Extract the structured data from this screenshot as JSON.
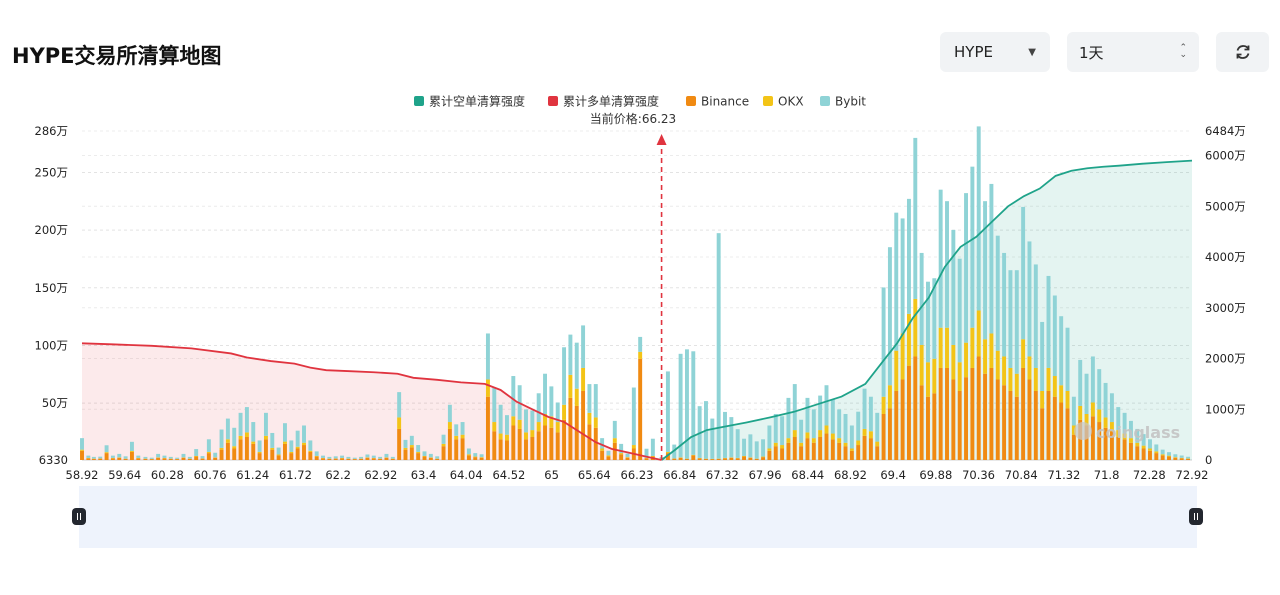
{
  "header": {
    "title": "HYPE交易所清算地图",
    "symbol_select": "HYPE",
    "period_select": "1天"
  },
  "chart_data": {
    "type": "bar",
    "legend": [
      {
        "name": "累计空单清算强度",
        "color": "#1fa38a"
      },
      {
        "name": "累计多单清算强度",
        "color": "#e0343f"
      },
      {
        "name": "Binance",
        "color": "#f08a12"
      },
      {
        "name": "OKX",
        "color": "#f3c417"
      },
      {
        "name": "Bybit",
        "color": "#8fd3d6"
      }
    ],
    "current_price_label": "当前价格:66.23",
    "current_price": 66.23,
    "watermark": "coinglass",
    "x_ticks": [
      "58.92",
      "59.64",
      "60.28",
      "60.76",
      "61.24",
      "61.72",
      "62.2",
      "62.92",
      "63.4",
      "64.04",
      "64.52",
      "65",
      "65.64",
      "66.23",
      "66.84",
      "67.32",
      "67.96",
      "68.44",
      "68.92",
      "69.4",
      "69.88",
      "70.36",
      "70.84",
      "71.32",
      "71.8",
      "72.28",
      "72.92"
    ],
    "left_axis_ticks": [
      "6330",
      "50万",
      "100万",
      "150万",
      "200万",
      "250万",
      "286万"
    ],
    "left_axis_values": [
      6330,
      500000,
      1000000,
      1500000,
      2000000,
      2500000,
      2860000
    ],
    "right_axis_ticks": [
      "0",
      "1000万",
      "2000万",
      "3000万",
      "4000万",
      "5000万",
      "6000万",
      "6484万"
    ],
    "right_axis_values": [
      0,
      10000000,
      20000000,
      30000000,
      40000000,
      50000000,
      60000000,
      64840000
    ],
    "x_range": [
      58.92,
      72.92
    ],
    "ylim_left": [
      6330,
      2860000
    ],
    "ylim_right": [
      0,
      64840000
    ],
    "bars_x": [
      58.92,
      59.0,
      59.07,
      59.15,
      59.23,
      59.31,
      59.39,
      59.47,
      59.55,
      59.63,
      59.72,
      59.8,
      59.88,
      59.96,
      60.04,
      60.12,
      60.2,
      60.28,
      60.36,
      60.44,
      60.52,
      60.6,
      60.68,
      60.76,
      60.84,
      60.92,
      61.0,
      61.08,
      61.16,
      61.24,
      61.32,
      61.4,
      61.48,
      61.56,
      61.64,
      61.72,
      61.8,
      61.88,
      61.96,
      62.04,
      62.12,
      62.2,
      62.28,
      62.36,
      62.44,
      62.52,
      62.6,
      62.68,
      62.76,
      62.84,
      62.92,
      63.0,
      63.08,
      63.16,
      63.24,
      63.32,
      63.4,
      63.48,
      63.56,
      63.64,
      63.72,
      63.8,
      63.88,
      63.96,
      64.04,
      64.12,
      64.2,
      64.28,
      64.36,
      64.44,
      64.52,
      64.6,
      64.68,
      64.76,
      64.84,
      64.92,
      65.0,
      65.08,
      65.16,
      65.24,
      65.32,
      65.4,
      65.48,
      65.56,
      65.64,
      65.72,
      65.8,
      65.88,
      65.96,
      66.04,
      66.12,
      66.23,
      66.31,
      66.39,
      66.47,
      66.55,
      66.63,
      66.71,
      66.79,
      66.87,
      66.95,
      67.03,
      67.11,
      67.19,
      67.27,
      67.35,
      67.43,
      67.51,
      67.59,
      67.67,
      67.75,
      67.83,
      67.91,
      67.99,
      68.07,
      68.15,
      68.23,
      68.31,
      68.39,
      68.47,
      68.55,
      68.63,
      68.71,
      68.79,
      68.87,
      68.95,
      69.03,
      69.11,
      69.19,
      69.27,
      69.35,
      69.43,
      69.51,
      69.59,
      69.67,
      69.75,
      69.83,
      69.91,
      69.99,
      70.07,
      70.15,
      70.23,
      70.31,
      70.39,
      70.47,
      70.55,
      70.63,
      70.71,
      70.79,
      70.87,
      70.95,
      71.03,
      71.11,
      71.19,
      71.27,
      71.35,
      71.43,
      71.51,
      71.59,
      71.67,
      71.75,
      71.83,
      71.91,
      71.99,
      72.07,
      72.15,
      72.23,
      72.31,
      72.39,
      72.47,
      72.55,
      72.63,
      72.71,
      72.79,
      72.87
    ],
    "series": [
      {
        "name": "Binance",
        "values": [
          80000,
          15000,
          10000,
          12000,
          60000,
          15000,
          20000,
          10000,
          70000,
          15000,
          10000,
          8000,
          20000,
          15000,
          10000,
          8000,
          20000,
          10000,
          30000,
          12000,
          60000,
          20000,
          90000,
          150000,
          100000,
          180000,
          200000,
          140000,
          60000,
          180000,
          90000,
          40000,
          140000,
          60000,
          100000,
          130000,
          70000,
          30000,
          15000,
          10000,
          12000,
          15000,
          10000,
          8000,
          10000,
          20000,
          15000,
          10000,
          20000,
          10000,
          270000,
          90000,
          110000,
          60000,
          30000,
          20000,
          10000,
          120000,
          270000,
          180000,
          190000,
          40000,
          25000,
          20000,
          550000,
          250000,
          180000,
          170000,
          300000,
          270000,
          180000,
          200000,
          250000,
          300000,
          280000,
          240000,
          350000,
          540000,
          470000,
          600000,
          310000,
          280000,
          80000,
          30000,
          150000,
          50000,
          20000,
          100000,
          880000,
          15000,
          30000,
          8000,
          60000,
          12000,
          20000,
          10000,
          40000,
          15000,
          10000,
          8000,
          10000,
          15000,
          20000,
          15000,
          30000,
          20000,
          10000,
          25000,
          80000,
          120000,
          100000,
          150000,
          200000,
          120000,
          190000,
          150000,
          200000,
          230000,
          180000,
          150000,
          120000,
          80000,
          130000,
          210000,
          190000,
          120000,
          400000,
          450000,
          600000,
          700000,
          820000,
          900000,
          650000,
          550000,
          580000,
          800000,
          800000,
          700000,
          600000,
          720000,
          800000,
          900000,
          750000,
          800000,
          700000,
          650000,
          600000,
          550000,
          800000,
          700000,
          600000,
          450000,
          600000,
          550000,
          500000,
          450000,
          220000,
          350000,
          300000,
          380000,
          330000,
          280000,
          250000,
          200000,
          180000,
          150000,
          120000,
          100000,
          80000,
          60000,
          40000,
          30000,
          20000,
          15000,
          10000,
          10000
        ]
      },
      {
        "name": "OKX",
        "values": [
          10000,
          3000,
          2000,
          2000,
          8000,
          3000,
          3000,
          2000,
          8000,
          3000,
          2000,
          2000,
          3000,
          3000,
          2000,
          2000,
          3000,
          2000,
          5000,
          2000,
          10000,
          3000,
          15000,
          30000,
          20000,
          30000,
          40000,
          20000,
          10000,
          30000,
          15000,
          8000,
          20000,
          10000,
          15000,
          20000,
          10000,
          5000,
          3000,
          2000,
          2000,
          3000,
          2000,
          2000,
          2000,
          3000,
          3000,
          2000,
          3000,
          2000,
          100000,
          15000,
          20000,
          10000,
          5000,
          3000,
          2000,
          20000,
          60000,
          30000,
          30000,
          10000,
          5000,
          5000,
          150000,
          80000,
          50000,
          50000,
          80000,
          80000,
          60000,
          60000,
          80000,
          100000,
          100000,
          90000,
          130000,
          200000,
          150000,
          200000,
          100000,
          90000,
          20000,
          10000,
          40000,
          10000,
          5000,
          30000,
          60000,
          3000,
          5000,
          2000,
          10000,
          2000,
          3000,
          2000,
          5000,
          3000,
          2000,
          2000,
          2000,
          3000,
          3000,
          3000,
          5000,
          3000,
          2000,
          5000,
          20000,
          30000,
          30000,
          40000,
          60000,
          30000,
          50000,
          40000,
          60000,
          70000,
          50000,
          40000,
          30000,
          20000,
          40000,
          60000,
          60000,
          40000,
          150000,
          200000,
          350000,
          400000,
          450000,
          500000,
          350000,
          300000,
          300000,
          350000,
          350000,
          300000,
          250000,
          300000,
          350000,
          400000,
          300000,
          300000,
          250000,
          250000,
          200000,
          200000,
          250000,
          200000,
          200000,
          150000,
          200000,
          180000,
          150000,
          150000,
          80000,
          120000,
          100000,
          120000,
          110000,
          90000,
          80000,
          60000,
          50000,
          40000,
          30000,
          25000,
          20000,
          15000,
          10000,
          8000,
          5000,
          4000,
          3000,
          3000
        ]
      },
      {
        "name": "Bybit",
        "values": [
          100000,
          20000,
          15000,
          15000,
          60000,
          20000,
          30000,
          20000,
          80000,
          20000,
          15000,
          10000,
          30000,
          20000,
          15000,
          10000,
          30000,
          15000,
          60000,
          20000,
          110000,
          40000,
          160000,
          180000,
          160000,
          200000,
          220000,
          170000,
          100000,
          200000,
          130000,
          60000,
          160000,
          100000,
          140000,
          150000,
          90000,
          40000,
          20000,
          15000,
          18000,
          20000,
          15000,
          10000,
          15000,
          25000,
          20000,
          15000,
          30000,
          15000,
          220000,
          70000,
          80000,
          60000,
          40000,
          30000,
          20000,
          80000,
          150000,
          100000,
          110000,
          50000,
          30000,
          25000,
          400000,
          300000,
          250000,
          170000,
          350000,
          300000,
          200000,
          170000,
          250000,
          350000,
          260000,
          170000,
          500000,
          350000,
          400000,
          370000,
          250000,
          290000,
          90000,
          40000,
          150000,
          80000,
          30000,
          500000,
          130000,
          80000,
          150000,
          15000,
          700000,
          120000,
          900000,
          950000,
          900000,
          450000,
          500000,
          350000,
          1960000,
          400000,
          350000,
          250000,
          150000,
          200000,
          150000,
          150000,
          200000,
          250000,
          250000,
          350000,
          400000,
          200000,
          300000,
          250000,
          300000,
          350000,
          300000,
          250000,
          250000,
          200000,
          250000,
          350000,
          300000,
          250000,
          950000,
          1200000,
          1200000,
          1000000,
          1000000,
          1400000,
          800000,
          700000,
          700000,
          1200000,
          1100000,
          1000000,
          900000,
          1300000,
          1400000,
          1600000,
          1200000,
          1300000,
          1000000,
          900000,
          850000,
          900000,
          1150000,
          1000000,
          900000,
          600000,
          800000,
          700000,
          600000,
          550000,
          250000,
          400000,
          350000,
          400000,
          350000,
          300000,
          250000,
          200000,
          180000,
          150000,
          120000,
          100000,
          80000,
          60000,
          40000,
          30000,
          25000,
          20000,
          15000,
          10000
        ]
      }
    ],
    "long_cumulative": {
      "x": [
        58.92,
        59.3,
        59.8,
        60.3,
        60.8,
        61.0,
        61.3,
        61.6,
        61.8,
        62.0,
        62.3,
        62.6,
        62.9,
        63.1,
        63.4,
        63.7,
        64.0,
        64.2,
        64.4,
        64.6,
        64.8,
        65.0,
        65.2,
        65.4,
        65.6,
        65.8,
        66.0,
        66.23
      ],
      "y": [
        23000000,
        22800000,
        22500000,
        22000000,
        21000000,
        20200000,
        19500000,
        19000000,
        18200000,
        17700000,
        17500000,
        17300000,
        17000000,
        16200000,
        15800000,
        15300000,
        15000000,
        13800000,
        11500000,
        10000000,
        8500000,
        7500000,
        5500000,
        3500000,
        2200000,
        1500000,
        800000,
        0
      ]
    },
    "short_cumulative": {
      "x": [
        66.23,
        66.4,
        66.6,
        66.8,
        67.0,
        67.3,
        67.6,
        67.9,
        68.2,
        68.5,
        68.8,
        69.0,
        69.2,
        69.4,
        69.6,
        69.8,
        70.0,
        70.2,
        70.4,
        70.6,
        70.8,
        71.0,
        71.2,
        71.4,
        71.6,
        71.8,
        72.0,
        72.3,
        72.6,
        72.92
      ],
      "y": [
        0,
        2000000,
        4500000,
        5900000,
        6500000,
        7400000,
        8400000,
        9500000,
        11000000,
        12500000,
        15000000,
        19000000,
        23000000,
        28000000,
        32000000,
        38000000,
        42000000,
        44000000,
        47000000,
        50000000,
        52000000,
        53500000,
        56000000,
        57000000,
        57500000,
        57800000,
        58000000,
        58400000,
        58700000,
        59000000
      ]
    }
  }
}
